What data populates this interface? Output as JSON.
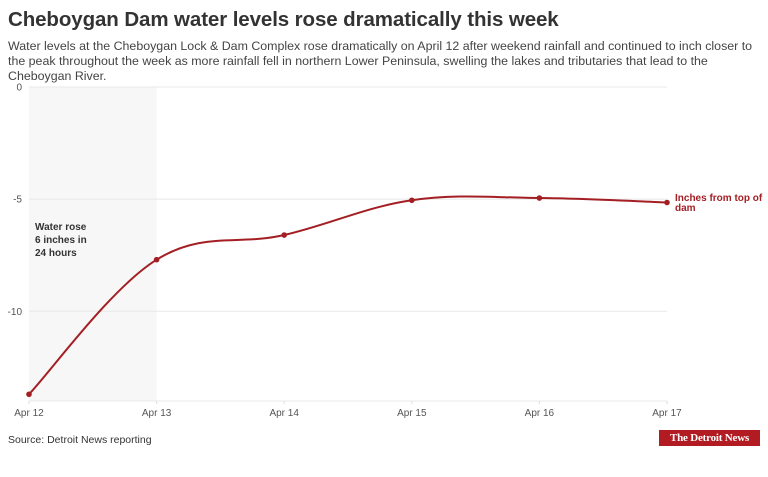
{
  "header": {
    "title": "Cheboygan Dam water levels rose dramatically this week",
    "subtitle": "Water levels at the Cheboygan Lock & Dam Complex rose dramatically on April 12 after weekend rainfall and continued to inch closer to the peak throughout the week as more rainfall fell in northern Lower Peninsula, swelling the lakes and tributaries that lead to the Cheboygan River."
  },
  "footer": {
    "source": "Source: Detroit News reporting",
    "logo_text": "The Detroit News"
  },
  "colors": {
    "series": "#a31f24",
    "highlight_band": "#f7f7f7",
    "gridline": "#e8e8e8",
    "logo_bg": "#b31b22"
  },
  "chart_data": {
    "type": "line",
    "title": "Cheboygan Dam water levels rose dramatically this week",
    "xlabel": "",
    "ylabel": "",
    "categories": [
      "Apr 12",
      "Apr 13",
      "Apr 14",
      "Apr 15",
      "Apr 16",
      "Apr 17"
    ],
    "series": [
      {
        "name": "Inches from top of dam",
        "values": [
          -13.7,
          -7.7,
          -6.6,
          -5.05,
          -4.95,
          -5.15
        ]
      }
    ],
    "ylim": [
      -14,
      0
    ],
    "yticks": [
      0,
      -5,
      -10
    ],
    "ytick_labels": [
      "0",
      "-5",
      "-10"
    ],
    "grid": true,
    "curve": "smooth",
    "highlight_range": {
      "from": "Apr 12",
      "to": "Apr 13"
    },
    "annotations": [
      {
        "text_lines": [
          "Water rose",
          "6 inches in",
          "24 hours"
        ],
        "anchor": "Apr 12"
      }
    ],
    "series_label_position": "end-of-line"
  }
}
